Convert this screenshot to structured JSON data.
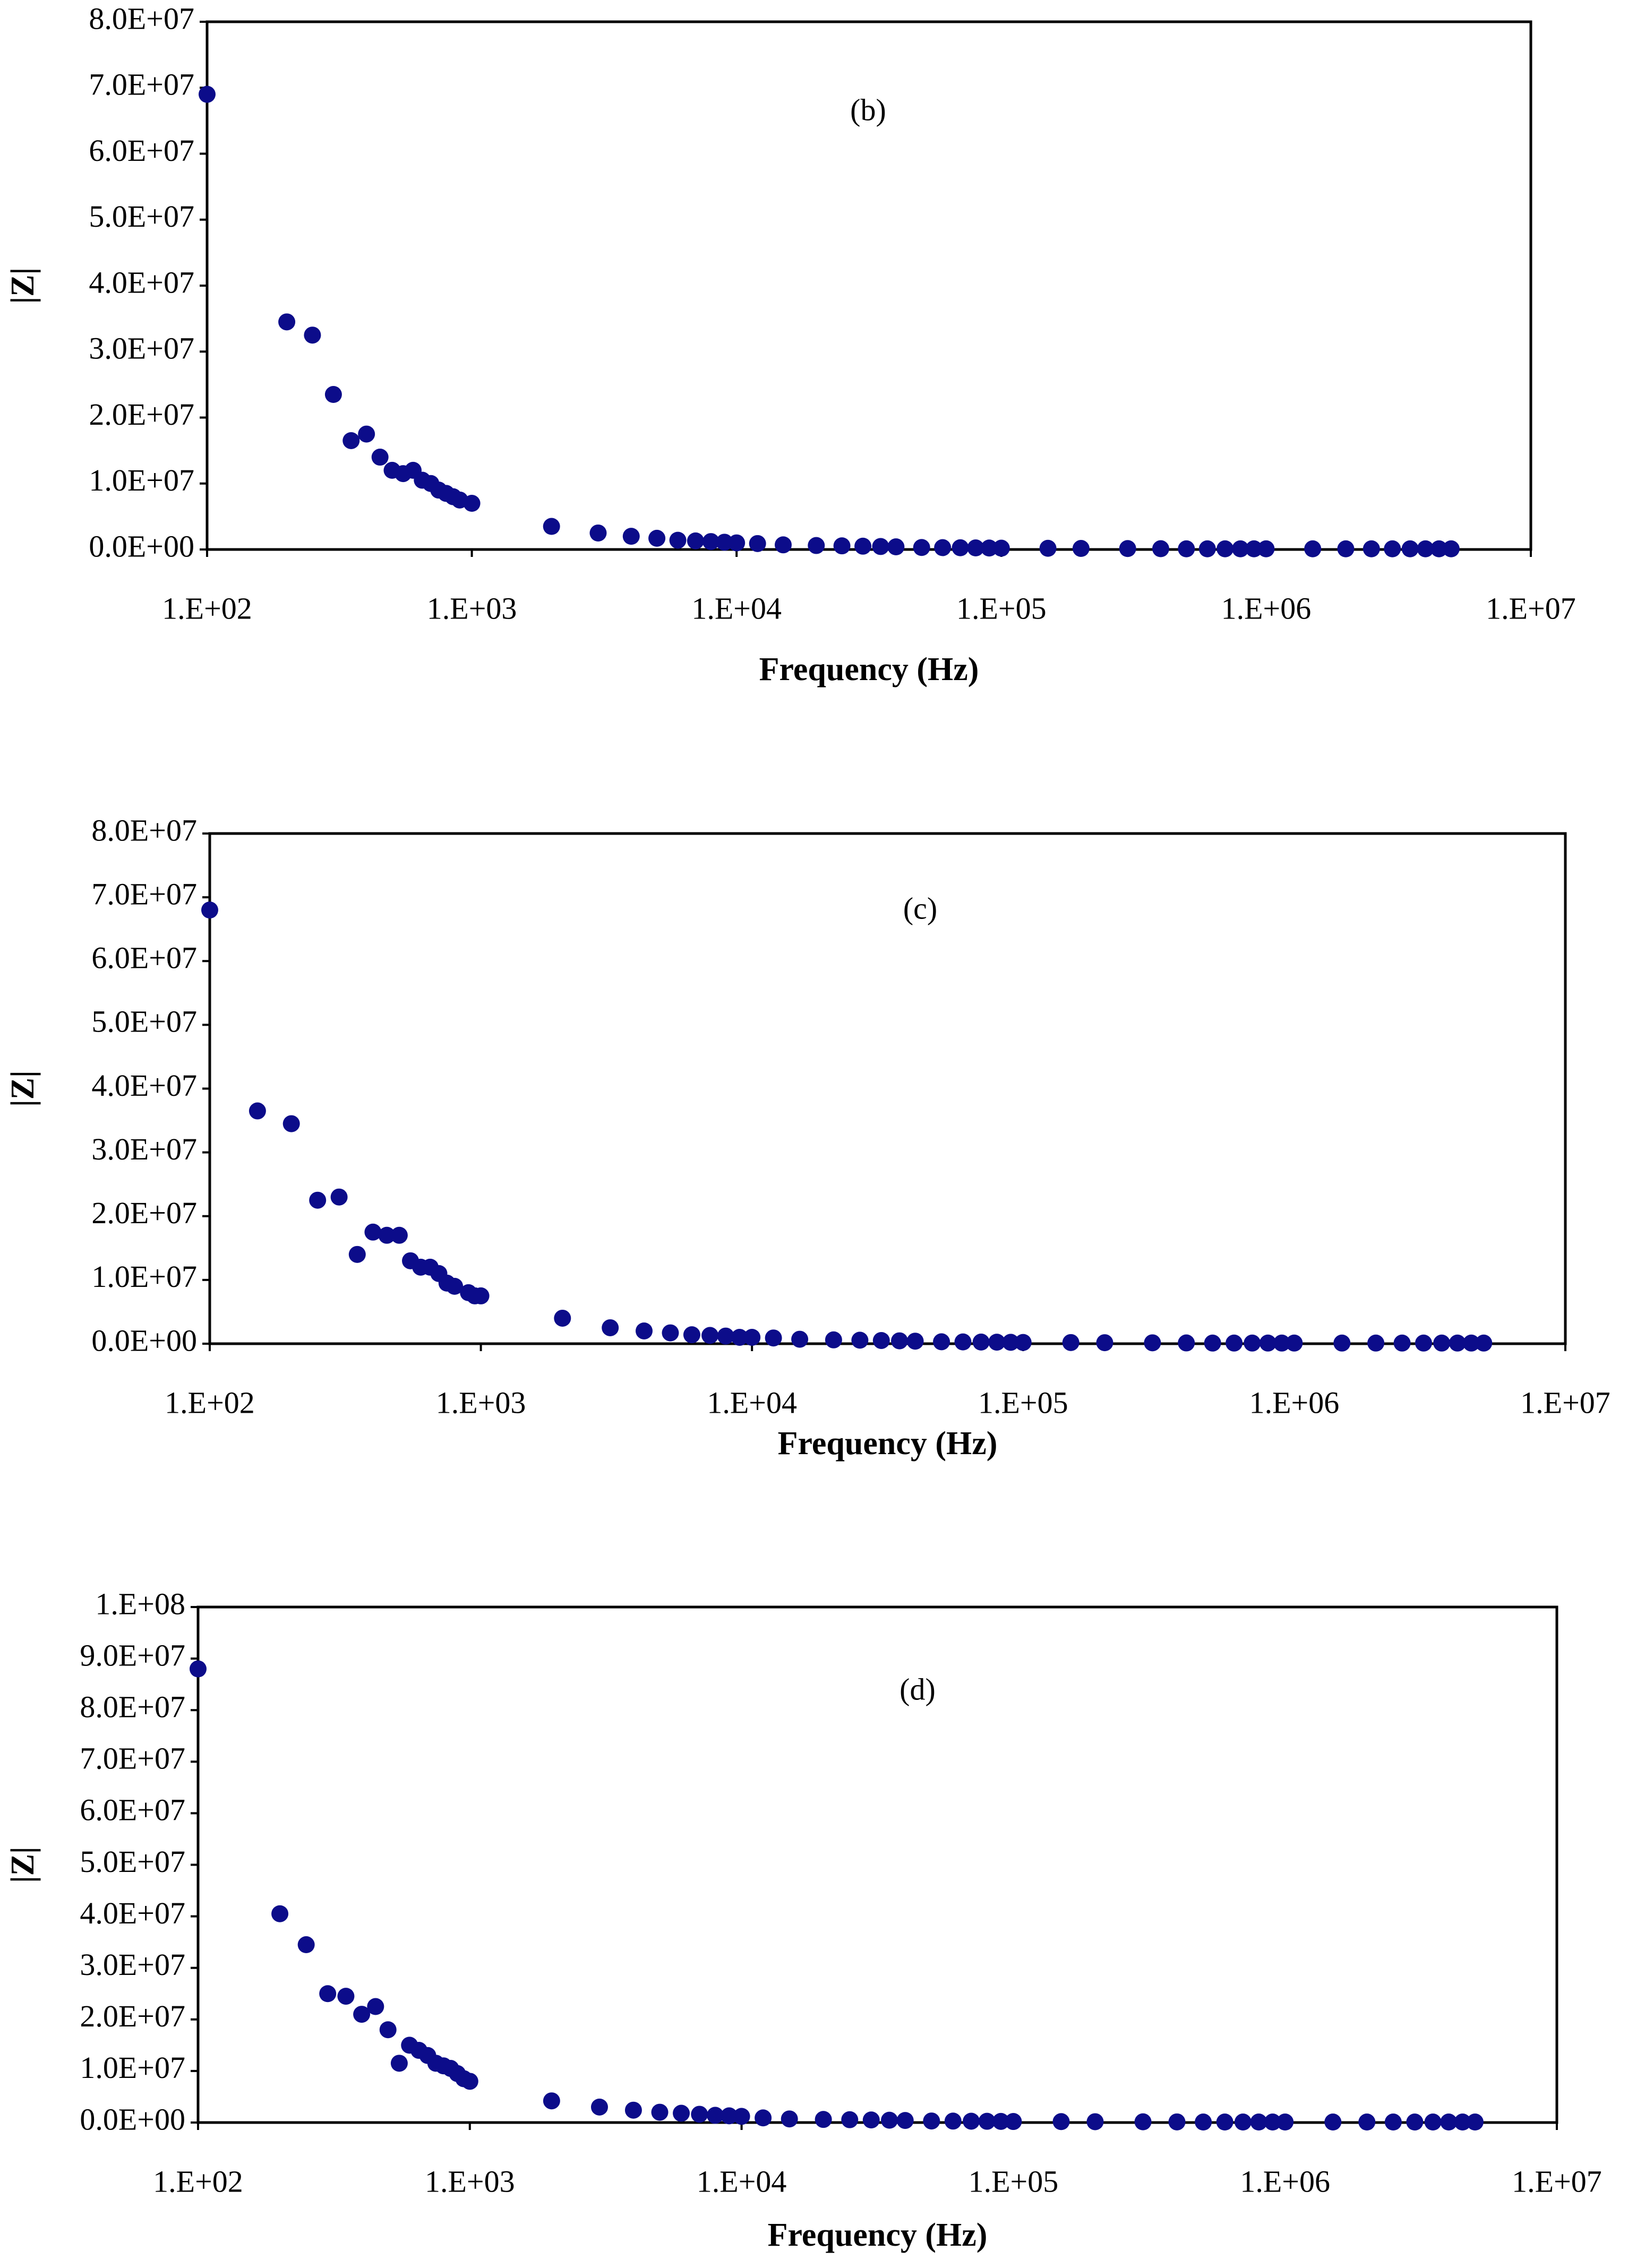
{
  "chart_data": [
    {
      "type": "scatter",
      "annotation": "(b)",
      "xlabel": "Frequency (Hz)",
      "ylabel": "|Z|",
      "color": "#0c0c8a",
      "log_x": true,
      "x": [
        100,
        200,
        250,
        300,
        350,
        400,
        450,
        500,
        550,
        600,
        650,
        700,
        750,
        800,
        850,
        900,
        1000,
        2000,
        3000,
        4000,
        5000,
        6000,
        7000,
        8000,
        9000,
        10000,
        12000,
        15000,
        20000,
        25000,
        30000,
        35000,
        40000,
        50000,
        60000,
        70000,
        80000,
        90000,
        100000,
        150000,
        200000,
        300000,
        400000,
        500000,
        600000,
        700000,
        800000,
        900000,
        1000000,
        1500000,
        2000000,
        2500000,
        3000000,
        3500000,
        4000000,
        4500000,
        5000000
      ],
      "values": [
        69000000,
        34500000,
        32500000,
        23500000,
        16500000,
        17500000,
        14000000,
        12000000,
        11500000,
        12000000,
        10500000,
        10000000,
        9000000,
        8500000,
        8000000,
        7500000,
        7000000,
        3500000,
        2500000,
        2000000,
        1700000,
        1400000,
        1300000,
        1200000,
        1100000,
        1000000,
        900000,
        700000,
        600000,
        550000,
        500000,
        450000,
        400000,
        300000,
        280000,
        260000,
        240000,
        220000,
        200000,
        180000,
        160000,
        140000,
        120000,
        100000,
        100000,
        100000,
        100000,
        100000,
        100000,
        100000,
        100000,
        100000,
        100000,
        100000,
        100000,
        100000,
        100000
      ],
      "xlim": [
        100,
        10000000
      ],
      "ylim": [
        0,
        80000000
      ],
      "xticks": [
        {
          "value": 100,
          "label": "1.E+02"
        },
        {
          "value": 1000,
          "label": "1.E+03"
        },
        {
          "value": 10000,
          "label": "1.E+04"
        },
        {
          "value": 100000,
          "label": "1.E+05"
        },
        {
          "value": 1000000,
          "label": "1.E+06"
        },
        {
          "value": 10000000,
          "label": "1.E+07"
        }
      ],
      "yticks": [
        {
          "value": 0,
          "label": "0.0E+00"
        },
        {
          "value": 10000000,
          "label": "1.0E+07"
        },
        {
          "value": 20000000,
          "label": "2.0E+07"
        },
        {
          "value": 30000000,
          "label": "3.0E+07"
        },
        {
          "value": 40000000,
          "label": "4.0E+07"
        },
        {
          "value": 50000000,
          "label": "5.0E+07"
        },
        {
          "value": 60000000,
          "label": "6.0E+07"
        },
        {
          "value": 70000000,
          "label": "7.0E+07"
        },
        {
          "value": 80000000,
          "label": "8.0E+07"
        }
      ]
    },
    {
      "type": "scatter",
      "annotation": "(c)",
      "xlabel": "Frequency (Hz)",
      "ylabel": "|Z|",
      "color": "#0c0c8a",
      "log_x": true,
      "x": [
        100,
        150,
        200,
        250,
        300,
        350,
        400,
        450,
        500,
        550,
        600,
        650,
        700,
        750,
        800,
        900,
        950,
        1000,
        2000,
        3000,
        4000,
        5000,
        6000,
        7000,
        8000,
        9000,
        10000,
        12000,
        15000,
        20000,
        25000,
        30000,
        35000,
        40000,
        50000,
        60000,
        70000,
        80000,
        90000,
        100000,
        150000,
        200000,
        300000,
        400000,
        500000,
        600000,
        700000,
        800000,
        900000,
        1000000,
        1500000,
        2000000,
        2500000,
        3000000,
        3500000,
        4000000,
        4500000,
        5000000
      ],
      "values": [
        68000000,
        36500000,
        34500000,
        22500000,
        23000000,
        14000000,
        17500000,
        17000000,
        17000000,
        13000000,
        12000000,
        12000000,
        11000000,
        9500000,
        9000000,
        8000000,
        7500000,
        7500000,
        4000000,
        2500000,
        2000000,
        1700000,
        1400000,
        1300000,
        1200000,
        1000000,
        1000000,
        900000,
        700000,
        600000,
        550000,
        500000,
        450000,
        400000,
        300000,
        280000,
        260000,
        240000,
        220000,
        200000,
        180000,
        160000,
        140000,
        120000,
        100000,
        100000,
        100000,
        100000,
        100000,
        100000,
        100000,
        100000,
        100000,
        100000,
        100000,
        100000,
        100000,
        100000
      ],
      "xlim": [
        100,
        10000000
      ],
      "ylim": [
        0,
        80000000
      ],
      "xticks": [
        {
          "value": 100,
          "label": "1.E+02"
        },
        {
          "value": 1000,
          "label": "1.E+03"
        },
        {
          "value": 10000,
          "label": "1.E+04"
        },
        {
          "value": 100000,
          "label": "1.E+05"
        },
        {
          "value": 1000000,
          "label": "1.E+06"
        },
        {
          "value": 10000000,
          "label": "1.E+07"
        }
      ],
      "yticks": [
        {
          "value": 0,
          "label": "0.0E+00"
        },
        {
          "value": 10000000,
          "label": "1.0E+07"
        },
        {
          "value": 20000000,
          "label": "2.0E+07"
        },
        {
          "value": 30000000,
          "label": "3.0E+07"
        },
        {
          "value": 40000000,
          "label": "4.0E+07"
        },
        {
          "value": 50000000,
          "label": "5.0E+07"
        },
        {
          "value": 60000000,
          "label": "6.0E+07"
        },
        {
          "value": 70000000,
          "label": "7.0E+07"
        },
        {
          "value": 80000000,
          "label": "8.0E+07"
        }
      ]
    },
    {
      "type": "scatter",
      "annotation": "(d)",
      "xlabel": "Frequency (Hz)",
      "ylabel": "|Z|",
      "color": "#0c0c8a",
      "log_x": true,
      "x": [
        100,
        200,
        250,
        300,
        350,
        400,
        450,
        500,
        550,
        600,
        650,
        700,
        750,
        800,
        850,
        900,
        950,
        1000,
        2000,
        3000,
        4000,
        5000,
        6000,
        7000,
        8000,
        9000,
        10000,
        12000,
        15000,
        20000,
        25000,
        30000,
        35000,
        40000,
        50000,
        60000,
        70000,
        80000,
        90000,
        100000,
        150000,
        200000,
        300000,
        400000,
        500000,
        600000,
        700000,
        800000,
        900000,
        1000000,
        1500000,
        2000000,
        2500000,
        3000000,
        3500000,
        4000000,
        4500000,
        5000000
      ],
      "values": [
        88000000,
        40500000,
        34500000,
        25000000,
        24500000,
        21000000,
        22500000,
        18000000,
        11500000,
        15000000,
        14000000,
        13000000,
        11500000,
        11000000,
        10500000,
        9500000,
        8500000,
        8000000,
        4200000,
        3000000,
        2400000,
        2000000,
        1800000,
        1600000,
        1400000,
        1300000,
        1200000,
        900000,
        700000,
        600000,
        550000,
        500000,
        450000,
        400000,
        300000,
        280000,
        260000,
        240000,
        220000,
        200000,
        180000,
        160000,
        140000,
        120000,
        100000,
        100000,
        100000,
        100000,
        100000,
        100000,
        100000,
        100000,
        100000,
        100000,
        100000,
        100000,
        100000,
        100000
      ],
      "xlim": [
        100,
        10000000
      ],
      "ylim": [
        0,
        100000000
      ],
      "xticks": [
        {
          "value": 100,
          "label": "1.E+02"
        },
        {
          "value": 1000,
          "label": "1.E+03"
        },
        {
          "value": 10000,
          "label": "1.E+04"
        },
        {
          "value": 100000,
          "label": "1.E+05"
        },
        {
          "value": 1000000,
          "label": "1.E+06"
        },
        {
          "value": 10000000,
          "label": "1.E+07"
        }
      ],
      "yticks": [
        {
          "value": 0,
          "label": "0.0E+00"
        },
        {
          "value": 10000000,
          "label": "1.0E+07"
        },
        {
          "value": 20000000,
          "label": "2.0E+07"
        },
        {
          "value": 30000000,
          "label": "3.0E+07"
        },
        {
          "value": 40000000,
          "label": "4.0E+07"
        },
        {
          "value": 50000000,
          "label": "5.0E+07"
        },
        {
          "value": 60000000,
          "label": "6.0E+07"
        },
        {
          "value": 70000000,
          "label": "7.0E+07"
        },
        {
          "value": 80000000,
          "label": "8.0E+07"
        },
        {
          "value": 90000000,
          "label": "9.0E+07"
        },
        {
          "value": 100000000,
          "label": "1.E+08"
        }
      ]
    }
  ]
}
